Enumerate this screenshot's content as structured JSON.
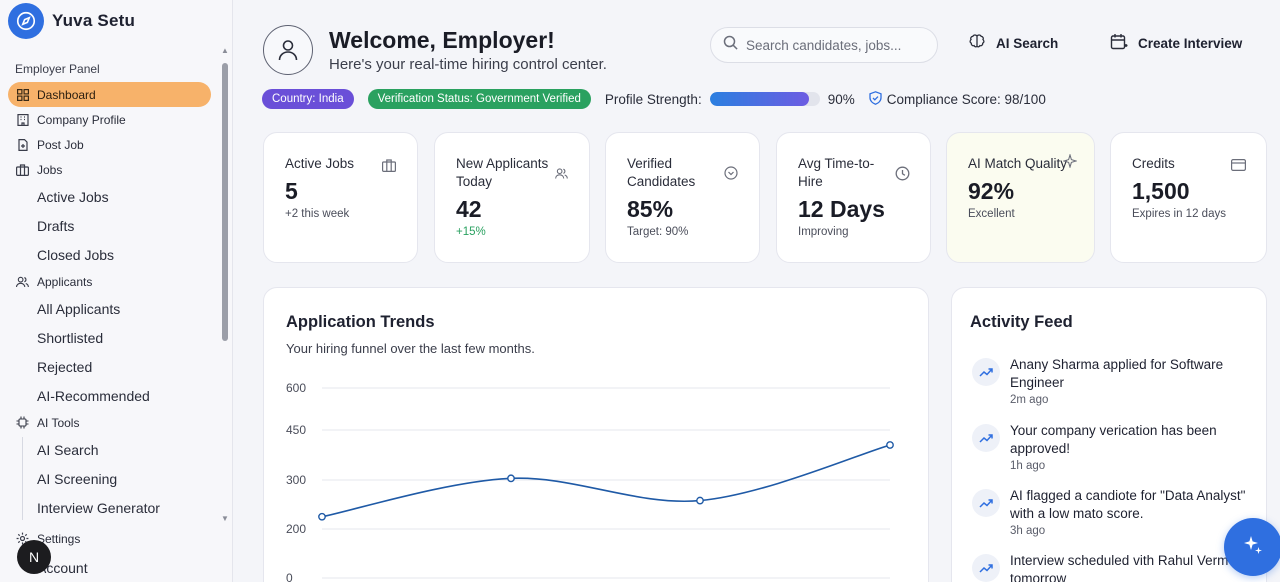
{
  "app": {
    "name": "Yuva Setu"
  },
  "sidebar": {
    "section": "Employer Panel",
    "items": {
      "dashboard": "Dashboard",
      "company_profile": "Company Profile",
      "post_job": "Post Job",
      "jobs": "Jobs",
      "jobs_sub": [
        "Active Jobs",
        "Drafts",
        "Closed Jobs"
      ],
      "applicants": "Applicants",
      "applicants_sub": [
        "All Applicants",
        "Shortlisted",
        "Rejected",
        "AI-Recommended"
      ],
      "ai_tools": "AI Tools",
      "ai_tools_sub": [
        "AI Search",
        "AI Screening",
        "Interview Generator"
      ],
      "settings": "Settings",
      "account": "Account"
    },
    "avatar_letter": "N"
  },
  "header": {
    "title": "Welcome, Employer!",
    "subtitle": "Here's your real-time hiring control center.",
    "search_placeholder": "Search candidates, jobs...",
    "ai_search": "AI Search",
    "create_interview": "Create Interview"
  },
  "status": {
    "country": "Country: India",
    "verification": "Verification Status: Government Verified",
    "profile_strength_label": "Profile Strength:",
    "profile_strength_value": "90%",
    "profile_strength_fraction": 0.9,
    "compliance": "Compliance Score: 98/100"
  },
  "stats": [
    {
      "title": "Active Jobs",
      "value": "5",
      "note": "+2 this week",
      "icon": "briefcase-icon"
    },
    {
      "title": "New Applicants Today",
      "value": "42",
      "note": "+15%",
      "icon": "users-icon"
    },
    {
      "title": "Verified Candidates",
      "value": "85%",
      "note": "Target: 90%",
      "icon": "check-circle-icon"
    },
    {
      "title": "Avg Time-to-Hire",
      "value": "12 Days",
      "note": "Improving",
      "icon": "clock-icon"
    },
    {
      "title": "AI Match Quality",
      "value": "92%",
      "note": "Excellent",
      "icon": "sparkle-icon"
    },
    {
      "title": "Credits",
      "value": "1,500",
      "note": "Expires in 12 days",
      "icon": "card-icon"
    }
  ],
  "trends": {
    "title": "Application Trends",
    "subtitle": "Your hiring funnel over the last few months."
  },
  "chart_data": {
    "type": "line",
    "x": [
      1,
      2,
      3,
      4
    ],
    "y": [
      225,
      305,
      258,
      405
    ],
    "yticks": [
      "600",
      "450",
      "300",
      "200",
      "0"
    ],
    "ytick_values": [
      600,
      450,
      300,
      200,
      0
    ],
    "grid": true,
    "color": "#1f5aa6"
  },
  "activity": {
    "title": "Activity Feed",
    "items": [
      {
        "text": "Anany Sharma applied for Software Engineer",
        "time": "2m ago"
      },
      {
        "text": "Your company verication has been approved!",
        "time": "1h ago"
      },
      {
        "text": "AI flagged a candiote for \"Data Analyst\" with a low mato score.",
        "time": "3h ago"
      },
      {
        "text": "Interview scheduled vith Rahul Verm for tomorrow",
        "time": ""
      }
    ]
  },
  "colors": {
    "accent": "#2f6fe0",
    "active_nav": "#f7b26a",
    "country_badge": "#6a4fd8",
    "verified_badge": "#2aa160"
  }
}
